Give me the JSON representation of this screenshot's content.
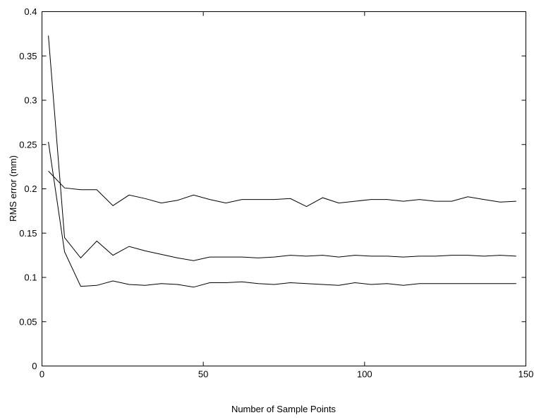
{
  "chart_data": {
    "type": "line",
    "title": "",
    "xlabel": "Number of Sample Points",
    "ylabel": "RMS error (mm)",
    "xlim": [
      0,
      150
    ],
    "ylim": [
      0,
      0.4
    ],
    "x_ticks": [
      0,
      50,
      100,
      150
    ],
    "y_ticks": [
      0,
      0.05,
      0.1,
      0.15,
      0.2,
      0.25,
      0.3,
      0.35,
      0.4
    ],
    "x_tick_labels": [
      "0",
      "50",
      "100",
      "150"
    ],
    "y_tick_labels": [
      "0",
      "0.05",
      "0.1",
      "0.15",
      "0.2",
      "0.25",
      "0.3",
      "0.35",
      "0.4"
    ],
    "grid": false,
    "legend": "none",
    "line_color": "#000000",
    "x": [
      2,
      7,
      12,
      17,
      22,
      27,
      32,
      37,
      42,
      47,
      52,
      57,
      62,
      67,
      72,
      77,
      82,
      87,
      92,
      97,
      102,
      107,
      112,
      117,
      122,
      127,
      132,
      137,
      142,
      147
    ],
    "series": [
      {
        "values": [
          0.22,
          0.201,
          0.199,
          0.199,
          0.181,
          0.193,
          0.189,
          0.184,
          0.187,
          0.193,
          0.188,
          0.184,
          0.188,
          0.188,
          0.188,
          0.189,
          0.18,
          0.19,
          0.184,
          0.186,
          0.188,
          0.188,
          0.186,
          0.188,
          0.186,
          0.186,
          0.191,
          0.188,
          0.185,
          0.186
        ]
      },
      {
        "values": [
          0.373,
          0.145,
          0.122,
          0.141,
          0.125,
          0.135,
          0.13,
          0.126,
          0.122,
          0.119,
          0.123,
          0.123,
          0.123,
          0.122,
          0.123,
          0.125,
          0.124,
          0.125,
          0.123,
          0.125,
          0.124,
          0.124,
          0.123,
          0.124,
          0.124,
          0.125,
          0.125,
          0.124,
          0.125,
          0.124
        ]
      },
      {
        "values": [
          0.253,
          0.129,
          0.09,
          0.091,
          0.096,
          0.092,
          0.091,
          0.093,
          0.092,
          0.089,
          0.094,
          0.094,
          0.095,
          0.093,
          0.092,
          0.094,
          0.093,
          0.092,
          0.091,
          0.094,
          0.092,
          0.093,
          0.091,
          0.093,
          0.093,
          0.093,
          0.093,
          0.093,
          0.093,
          0.093
        ]
      }
    ]
  }
}
